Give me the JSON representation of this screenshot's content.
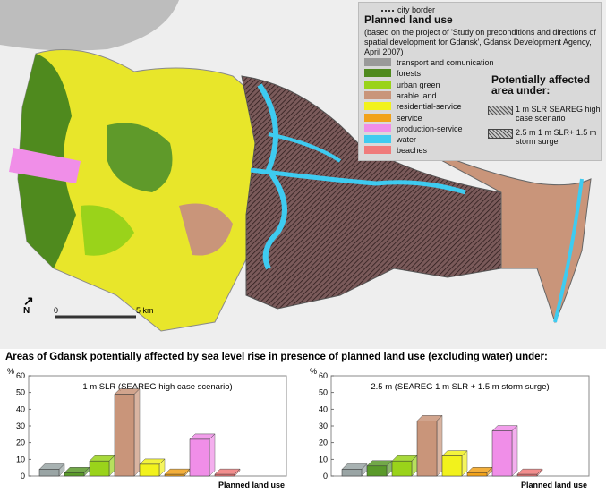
{
  "map": {
    "legend": {
      "city_border_label": "city border",
      "title": "Planned land use",
      "subtitle": "(based on the project of 'Study on preconditions and directions of spatial development for Gdansk', Gdansk Development Agency, April 2007)",
      "categories": [
        {
          "label": "transport and comunication",
          "color": "#9a9a9a"
        },
        {
          "label": "forests",
          "color": "#4f8a1e"
        },
        {
          "label": "urban green",
          "color": "#9ad31a"
        },
        {
          "label": "arable land",
          "color": "#c9957a"
        },
        {
          "label": "residential-service",
          "color": "#f2f21c"
        },
        {
          "label": "service",
          "color": "#f1a21a"
        },
        {
          "label": "production-service",
          "color": "#f08ee8"
        },
        {
          "label": "water",
          "color": "#3ecbf0"
        },
        {
          "label": "beaches",
          "color": "#f07b7b"
        }
      ],
      "affected_title": "Potentially affected area under:",
      "affected_items": [
        {
          "label": "1 m SLR SEAREG high case scenario"
        },
        {
          "label": "2.5 m 1 m SLR+ 1.5 m storm surge"
        }
      ]
    },
    "scale_zero": "0",
    "scale_label": "5 km",
    "north_label": "N"
  },
  "charts_title": "Areas of Gdansk potentially affected by sea level rise in presence of planned land use (excluding water) under:",
  "chart_data": [
    {
      "type": "bar",
      "title": "1 m SLR (SEAREG high case scenario)",
      "ylabel": "%",
      "xlabel": "Planned land use",
      "ylim": [
        0,
        60
      ],
      "yticks": [
        0,
        10,
        20,
        30,
        40,
        50,
        60
      ],
      "categories": [
        "transport and comunication",
        "forests",
        "urban green",
        "arable land",
        "residential-service",
        "service",
        "production-service",
        "beaches"
      ],
      "values": [
        4,
        2,
        9,
        49,
        7,
        1,
        22,
        1
      ],
      "colors": [
        "#9aa5a5",
        "#5a9a2a",
        "#9ad31a",
        "#c9957a",
        "#f2f21c",
        "#f1a21a",
        "#f08ee8",
        "#f07b7b"
      ]
    },
    {
      "type": "bar",
      "title": "2.5 m  (SEAREG 1 m SLR + 1.5 m storm surge)",
      "ylabel": "%",
      "xlabel": "Planned land use",
      "ylim": [
        0,
        60
      ],
      "yticks": [
        0,
        10,
        20,
        30,
        40,
        50,
        60
      ],
      "categories": [
        "transport and comunication",
        "forests",
        "urban green",
        "arable land",
        "residential-service",
        "service",
        "production-service",
        "beaches"
      ],
      "values": [
        4,
        6,
        9,
        33,
        12,
        2,
        27,
        1
      ],
      "colors": [
        "#9aa5a5",
        "#5a9a2a",
        "#9ad31a",
        "#c9957a",
        "#f2f21c",
        "#f1a21a",
        "#f08ee8",
        "#f07b7b"
      ]
    }
  ]
}
